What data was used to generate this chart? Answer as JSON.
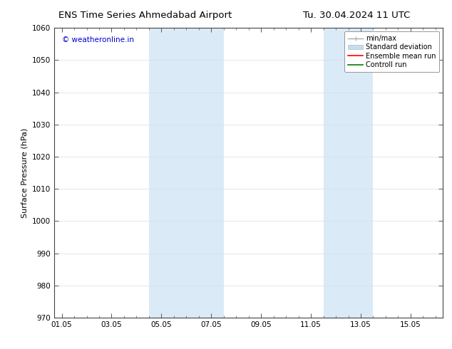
{
  "title_left": "ENS Time Series Ahmedabad Airport",
  "title_right": "Tu. 30.04.2024 11 UTC",
  "ylabel": "Surface Pressure (hPa)",
  "xlim_dates": [
    "01.05",
    "03.05",
    "05.05",
    "07.05",
    "09.05",
    "11.05",
    "13.05",
    "15.05"
  ],
  "ylim": [
    970,
    1060
  ],
  "yticks": [
    970,
    980,
    990,
    1000,
    1010,
    1020,
    1030,
    1040,
    1050,
    1060
  ],
  "shaded_regions": [
    {
      "xstart": 3.5,
      "xend": 5.0,
      "color": "#daeaf7"
    },
    {
      "xstart": 5.0,
      "xend": 6.5,
      "color": "#daeaf7"
    },
    {
      "xstart": 10.5,
      "xend": 11.5,
      "color": "#daeaf7"
    },
    {
      "xstart": 11.5,
      "xend": 12.5,
      "color": "#daeaf7"
    }
  ],
  "watermark": "© weatheronline.in",
  "watermark_color": "#0000cc",
  "bg_color": "#ffffff",
  "plot_bg_color": "#ffffff",
  "legend_items": [
    {
      "label": "min/max",
      "color": "#aaaaaa",
      "linewidth": 1.0
    },
    {
      "label": "Standard deviation",
      "color": "#c8dced",
      "linewidth": 6
    },
    {
      "label": "Ensemble mean run",
      "color": "#ff0000",
      "linewidth": 1.2
    },
    {
      "label": "Controll run",
      "color": "#008000",
      "linewidth": 1.2
    }
  ],
  "title_fontsize": 9.5,
  "axis_fontsize": 8,
  "tick_fontsize": 7.5,
  "watermark_fontsize": 7.5,
  "legend_fontsize": 7,
  "x_tick_positions": [
    0,
    2,
    4,
    6,
    8,
    10,
    12,
    14
  ],
  "xlim": [
    -0.3,
    15.3
  ],
  "num_x_points": 15
}
